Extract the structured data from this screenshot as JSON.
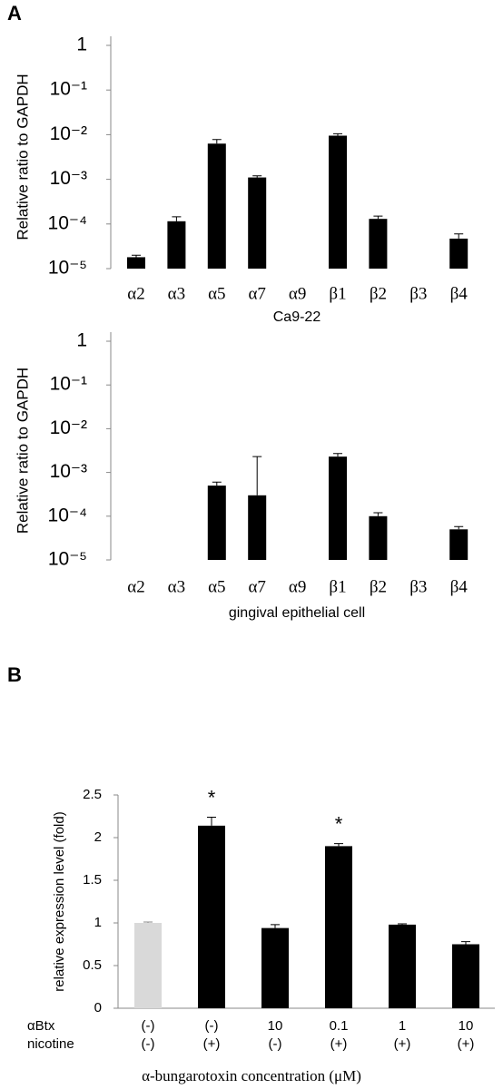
{
  "chart_data": [
    {
      "type": "bar",
      "panel": "A",
      "log": true,
      "ylabel": "Relative ratio to GAPDH",
      "xlabel": "Ca9-22",
      "categories": [
        "α2",
        "α3",
        "α5",
        "α7",
        "α9",
        "β1",
        "β2",
        "β3",
        "β4"
      ],
      "values": [
        1.8e-05,
        0.000115,
        0.0063,
        0.0011,
        null,
        0.0095,
        0.00013,
        null,
        4.7e-05
      ],
      "errors": [
        2e-06,
        3e-05,
        0.0015,
        0.0001,
        null,
        0.001,
        2e-05,
        null,
        1.3e-05
      ],
      "color": "#000000",
      "ylim": [
        1e-05,
        1
      ],
      "yticks": [
        1,
        {
          "value": 0.1,
          "label": "10⁻¹"
        },
        {
          "value": 0.01,
          "label": "10⁻²"
        },
        {
          "value": 0.001,
          "label": "10⁻³"
        },
        {
          "value": 0.0001,
          "label": "10⁻⁴"
        },
        {
          "value": 1e-05,
          "label": "10⁻⁵"
        }
      ]
    },
    {
      "type": "bar",
      "log": true,
      "ylabel": "Relative ratio to GAPDH",
      "xlabel": "gingival epithelial cell",
      "categories": [
        "α2",
        "α3",
        "α5",
        "α7",
        "α9",
        "β1",
        "β2",
        "β3",
        "β4"
      ],
      "values": [
        null,
        null,
        0.0005,
        0.0003,
        null,
        0.0023,
        0.0001,
        null,
        5e-05
      ],
      "errors": [
        null,
        null,
        0.0001,
        0.002,
        null,
        0.0004,
        2e-05,
        null,
        8e-06
      ],
      "color": "#000000",
      "ylim": [
        1e-05,
        1
      ],
      "yticks": [
        1,
        {
          "value": 0.1,
          "label": "10⁻¹"
        },
        {
          "value": 0.01,
          "label": "10⁻²"
        },
        {
          "value": 0.001,
          "label": "10⁻³"
        },
        {
          "value": 0.0001,
          "label": "10⁻⁴"
        },
        {
          "value": 1e-05,
          "label": "10⁻⁵"
        }
      ]
    },
    {
      "type": "bar",
      "panel": "B",
      "log": false,
      "ylabel": "relative expression level (fold)",
      "xlabel": "α-bungarotoxin concentration (μM)",
      "rows": [
        {
          "name": "αBtx",
          "labels": [
            "(-)",
            "(-)",
            "10",
            "0.1",
            "1",
            "10"
          ]
        },
        {
          "name": "nicotine",
          "labels": [
            "(-)",
            "(+)",
            "(-)",
            "(+)",
            "(+)",
            "(+)"
          ]
        }
      ],
      "values": [
        1,
        2.14,
        0.94,
        1.9,
        0.98,
        0.75
      ],
      "errors": [
        0.01,
        0.1,
        0.04,
        0.03,
        0.01,
        0.03
      ],
      "colors": [
        "#d9d9d9",
        "#000000",
        "#000000",
        "#000000",
        "#000000",
        "#000000"
      ],
      "significance": [
        null,
        "*",
        null,
        "*",
        null,
        null
      ],
      "ylim": [
        0,
        2.5
      ],
      "yticks": [
        0,
        0.5,
        1,
        1.5,
        2,
        2.5
      ]
    }
  ]
}
